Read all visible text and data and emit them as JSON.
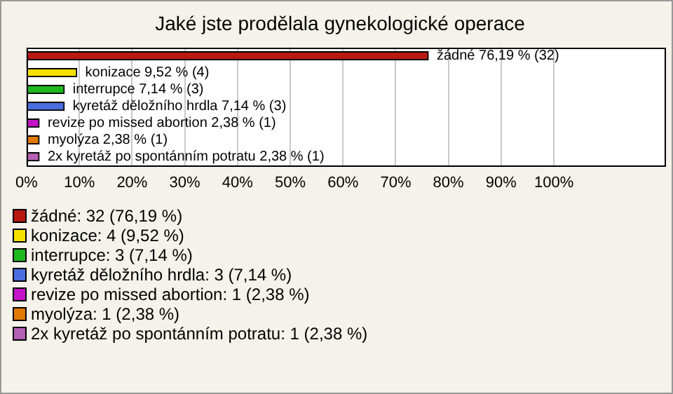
{
  "chart_data": {
    "type": "bar",
    "orientation": "horizontal",
    "title": "Jaké jste prodělala gynekologické operace",
    "categories": [
      null,
      null,
      null,
      null,
      null,
      null,
      null
    ],
    "values": [
      76.19,
      9.52,
      7.14,
      7.14,
      2.38,
      2.38,
      2.38
    ],
    "colors": [
      "#b81a10",
      "#f5e000",
      "#1fb81f",
      "#4a6ee0",
      "#c414c8",
      "#e07a00",
      "#b460b4"
    ],
    "value_labels": [
      "žádné 76,19 % (32)",
      "konizace 9,52 % (4)",
      "interrupce 7,14 % (3)",
      "kyretáž děložního hrdla 7,14 % (3)",
      "revize po missed abortion 2,38 % (1)",
      "myolýza 2,38 % (1)",
      "2x kyretáž po spontánním potratu 2,38 % (1)"
    ],
    "xlim": [
      0,
      121
    ],
    "xticks": [
      {
        "value": 0,
        "label": "0%"
      },
      {
        "value": 10,
        "label": "10%"
      },
      {
        "value": 20,
        "label": "20%"
      },
      {
        "value": 30,
        "label": "30%"
      },
      {
        "value": 40,
        "label": "40%"
      },
      {
        "value": 50,
        "label": "50%"
      },
      {
        "value": 60,
        "label": "60%"
      },
      {
        "value": 70,
        "label": "70%"
      },
      {
        "value": 80,
        "label": "80%"
      },
      {
        "value": 90,
        "label": "90%"
      },
      {
        "value": 100,
        "label": "100%"
      }
    ],
    "grid": "x",
    "tick_labels": "x",
    "annotations": [
      "žádné: 32 (76,19 %)",
      "konizace: 4 (9,52 %)",
      "interrupce: 3 (7,14 %)",
      "kyretáž děložního hrdla: 3 (7,14 %)",
      "revize po missed abortion: 1 (2,38 %)",
      "myolýza: 1 (2,38 %)",
      "2x kyretáž po spontánním potratu: 1 (2,38 %)"
    ]
  }
}
